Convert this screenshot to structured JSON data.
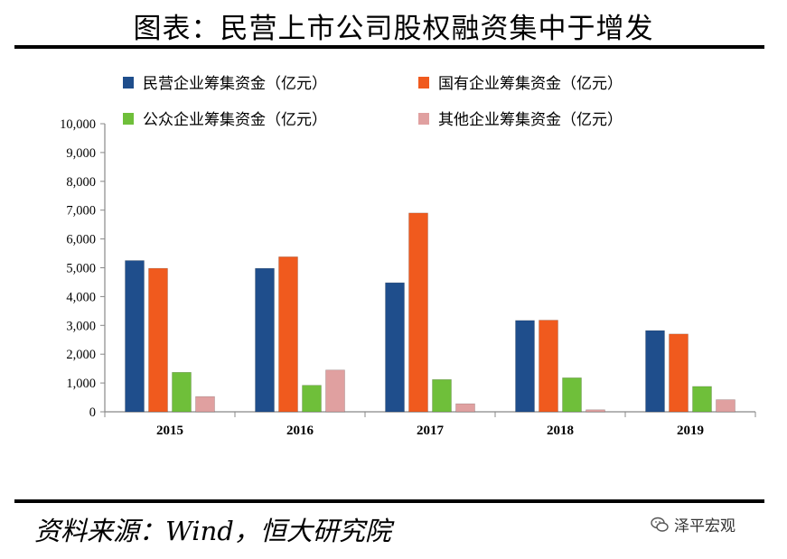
{
  "header": {
    "title": "图表：民营上市公司股权融资集中于增发"
  },
  "footer": {
    "source": "资料来源：Wind，恒大研究院",
    "watermark": "泽平宏观"
  },
  "chart_data": {
    "type": "bar",
    "title": "图表：民营上市公司股权融资集中于增发",
    "xlabel": "",
    "ylabel": "",
    "categories": [
      "2015",
      "2016",
      "2017",
      "2018",
      "2019"
    ],
    "ylim": [
      0,
      10000
    ],
    "yticks": [
      0,
      1000,
      2000,
      3000,
      4000,
      5000,
      6000,
      7000,
      8000,
      9000,
      10000
    ],
    "ytick_labels": [
      "0",
      "1,000",
      "2,000",
      "3,000",
      "4,000",
      "5,000",
      "6,000",
      "7,000",
      "8,000",
      "9,000",
      "10,000"
    ],
    "grid": false,
    "legend_position": "top",
    "series": [
      {
        "name": "民营企业筹集资金（亿元）",
        "color": "#1f4e8c",
        "values": [
          5250,
          4980,
          4480,
          3170,
          2820
        ]
      },
      {
        "name": "国有企业筹集资金（亿元）",
        "color": "#f05a1e",
        "values": [
          4980,
          5380,
          6900,
          3180,
          2700
        ]
      },
      {
        "name": "公众企业筹集资金（亿元）",
        "color": "#6fbf3a",
        "values": [
          1370,
          920,
          1120,
          1180,
          880
        ]
      },
      {
        "name": "其他企业筹集资金（亿元）",
        "color": "#e0a0a0",
        "values": [
          530,
          1450,
          280,
          70,
          420
        ]
      }
    ]
  }
}
